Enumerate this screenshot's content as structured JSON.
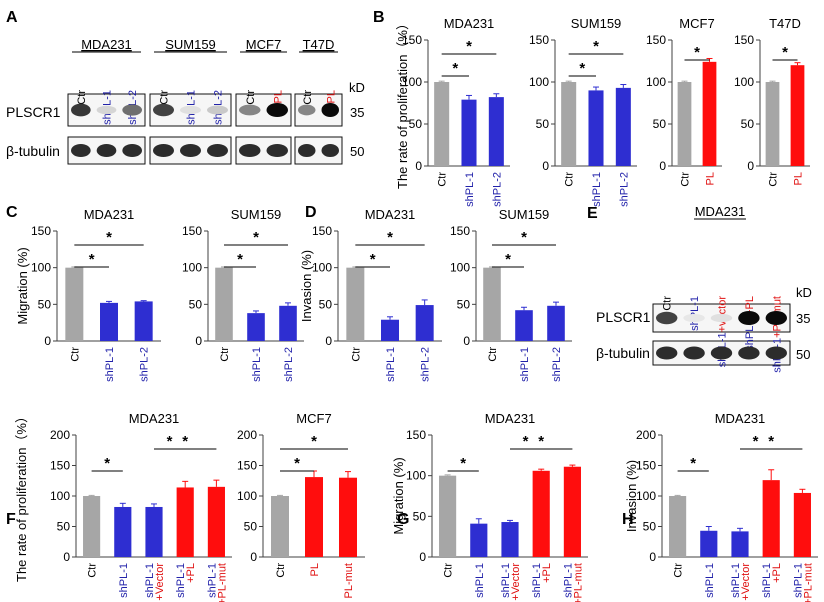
{
  "colors": {
    "ctr": "#a6a6a6",
    "kd": "#2e2ed1",
    "oe": "#ff0d0d",
    "axis": "#404040",
    "label_kd": "#2222aa",
    "label_oe": "#e01010",
    "text": "#000000"
  },
  "blots": {
    "A": {
      "letter": "A",
      "kd": "kD",
      "protein1": "PLSCR1",
      "protein2": "β-tubulin",
      "mw1": "35",
      "mw2": "50",
      "groups": [
        {
          "name": "MDA231",
          "lanes": [
            {
              "label": "Ctr",
              "kind": "ctr"
            },
            {
              "label": "shPL-1",
              "kind": "kd"
            },
            {
              "label": "shPL-2",
              "kind": "kd"
            }
          ]
        },
        {
          "name": "SUM159",
          "lanes": [
            {
              "label": "Ctr",
              "kind": "ctr"
            },
            {
              "label": "shPL-1",
              "kind": "kd"
            },
            {
              "label": "shPL-2",
              "kind": "kd"
            }
          ]
        },
        {
          "name": "MCF7",
          "lanes": [
            {
              "label": "Ctr",
              "kind": "ctr"
            },
            {
              "label": "PL",
              "kind": "oe"
            }
          ]
        },
        {
          "name": "T47D",
          "lanes": [
            {
              "label": "Ctr",
              "kind": "ctr"
            },
            {
              "label": "PL",
              "kind": "oe"
            }
          ]
        }
      ]
    },
    "E": {
      "letter": "E",
      "kd": "kD",
      "protein1": "PLSCR1",
      "protein2": "β-tubulin",
      "mw1": "35",
      "mw2": "50",
      "group": "MDA231",
      "lanes": [
        {
          "label": "Ctr",
          "kind": "ctr"
        },
        {
          "label": "shPL-1",
          "kind": "kd"
        },
        {
          "label": "shPL-1+vector",
          "kind": "kd_oe"
        },
        {
          "label": "shPL-1+PL",
          "kind": "kd_oe"
        },
        {
          "label": "shPL-1+PL-mut",
          "kind": "kd_oe"
        }
      ]
    }
  },
  "chart_data": [
    {
      "panel": "B",
      "type": "bar",
      "title": "MDA231",
      "ylabel": "The rate of proliferation（%）",
      "ylim": [
        0,
        150
      ],
      "ticks": [
        0,
        50,
        100,
        150
      ],
      "categories": [
        {
          "label": "Ctr",
          "kind": "ctr"
        },
        {
          "label": "shPL-1",
          "kind": "kd"
        },
        {
          "label": "shPL-2",
          "kind": "kd"
        }
      ],
      "values": [
        100,
        79,
        82
      ],
      "errors": [
        1,
        5,
        4
      ],
      "significance": [
        {
          "from": 0,
          "to": 1,
          "label": "*"
        },
        {
          "from": 0,
          "to": 2,
          "label": "*"
        }
      ]
    },
    {
      "panel": "",
      "type": "bar",
      "title": "SUM159",
      "ylabel": "",
      "ylim": [
        0,
        150
      ],
      "ticks": [
        0,
        50,
        100,
        150
      ],
      "categories": [
        {
          "label": "Ctr",
          "kind": "ctr"
        },
        {
          "label": "shPL-1",
          "kind": "kd"
        },
        {
          "label": "shPL-2",
          "kind": "kd"
        }
      ],
      "values": [
        100,
        90,
        93
      ],
      "errors": [
        1,
        4,
        4
      ],
      "significance": [
        {
          "from": 0,
          "to": 1,
          "label": "*"
        },
        {
          "from": 0,
          "to": 2,
          "label": "*"
        }
      ]
    },
    {
      "panel": "",
      "type": "bar",
      "title": "MCF7",
      "ylabel": "",
      "ylim": [
        0,
        150
      ],
      "ticks": [
        0,
        50,
        100,
        150
      ],
      "categories": [
        {
          "label": "Ctr",
          "kind": "ctr"
        },
        {
          "label": "PL",
          "kind": "oe"
        }
      ],
      "values": [
        100,
        124
      ],
      "errors": [
        1,
        4
      ],
      "significance": [
        {
          "from": 0,
          "to": 1,
          "label": "*"
        }
      ]
    },
    {
      "panel": "",
      "type": "bar",
      "title": "T47D",
      "ylabel": "",
      "ylim": [
        0,
        150
      ],
      "ticks": [
        0,
        50,
        100,
        150
      ],
      "categories": [
        {
          "label": "Ctr",
          "kind": "ctr"
        },
        {
          "label": "PL",
          "kind": "oe"
        }
      ],
      "values": [
        100,
        120
      ],
      "errors": [
        1,
        3
      ],
      "significance": [
        {
          "from": 0,
          "to": 1,
          "label": "*"
        }
      ]
    },
    {
      "panel": "C",
      "type": "bar",
      "title": "MDA231",
      "ylabel": "Migration (%)",
      "ylim": [
        0,
        150
      ],
      "ticks": [
        0,
        50,
        100,
        150
      ],
      "categories": [
        {
          "label": "Ctr",
          "kind": "ctr"
        },
        {
          "label": "shPL-1",
          "kind": "kd"
        },
        {
          "label": "shPL-2",
          "kind": "kd"
        }
      ],
      "values": [
        100,
        52,
        54
      ],
      "errors": [
        1,
        2,
        1
      ],
      "significance": [
        {
          "from": 0,
          "to": 1,
          "label": "*"
        },
        {
          "from": 0,
          "to": 2,
          "label": "*"
        }
      ]
    },
    {
      "panel": "",
      "type": "bar",
      "title": "SUM159",
      "ylabel": "",
      "ylim": [
        0,
        150
      ],
      "ticks": [
        0,
        50,
        100,
        150
      ],
      "categories": [
        {
          "label": "Ctr",
          "kind": "ctr"
        },
        {
          "label": "shPL-1",
          "kind": "kd"
        },
        {
          "label": "shPL-2",
          "kind": "kd"
        }
      ],
      "values": [
        100,
        38,
        48
      ],
      "errors": [
        1,
        3,
        4
      ],
      "significance": [
        {
          "from": 0,
          "to": 1,
          "label": "*"
        },
        {
          "from": 0,
          "to": 2,
          "label": "*"
        }
      ]
    },
    {
      "panel": "D",
      "type": "bar",
      "title": "MDA231",
      "ylabel": "Invasion (%)",
      "ylim": [
        0,
        150
      ],
      "ticks": [
        0,
        50,
        100,
        150
      ],
      "categories": [
        {
          "label": "Ctr",
          "kind": "ctr"
        },
        {
          "label": "shPL-1",
          "kind": "kd"
        },
        {
          "label": "shPL-2",
          "kind": "kd"
        }
      ],
      "values": [
        100,
        29,
        49
      ],
      "errors": [
        1,
        4,
        7
      ],
      "significance": [
        {
          "from": 0,
          "to": 1,
          "label": "*"
        },
        {
          "from": 0,
          "to": 2,
          "label": "*"
        }
      ]
    },
    {
      "panel": "",
      "type": "bar",
      "title": "SUM159",
      "ylabel": "",
      "ylim": [
        0,
        150
      ],
      "ticks": [
        0,
        50,
        100,
        150
      ],
      "categories": [
        {
          "label": "Ctr",
          "kind": "ctr"
        },
        {
          "label": "shPL-1",
          "kind": "kd"
        },
        {
          "label": "shPL-2",
          "kind": "kd"
        }
      ],
      "values": [
        100,
        42,
        48
      ],
      "errors": [
        1,
        4,
        5
      ],
      "significance": [
        {
          "from": 0,
          "to": 1,
          "label": "*"
        },
        {
          "from": 0,
          "to": 2,
          "label": "*"
        }
      ]
    },
    {
      "panel": "F",
      "type": "bar",
      "title": "MDA231",
      "ylabel": "The rate of proliferation（%）",
      "ylim": [
        0,
        200
      ],
      "ticks": [
        0,
        50,
        100,
        150,
        200
      ],
      "categories": [
        {
          "label": "Ctr",
          "kind": "ctr"
        },
        {
          "label": "shPL-1",
          "kind": "kd"
        },
        {
          "label": "shPL-1|+Vector",
          "kind": "kd_oe"
        },
        {
          "label": "shPL-1|+PL",
          "kind": "kd_oe"
        },
        {
          "label": "shPL-1|+PL-mut",
          "kind": "kd_oe"
        }
      ],
      "bar_kinds": [
        "ctr",
        "kd",
        "kd",
        "oe",
        "oe"
      ],
      "values": [
        100,
        82,
        82,
        114,
        115
      ],
      "errors": [
        1,
        6,
        5,
        10,
        11
      ],
      "significance": [
        {
          "from": 0,
          "to": 1,
          "label": "*"
        },
        {
          "from": 2,
          "to": 3,
          "label": "*"
        },
        {
          "from": 2,
          "to": 4,
          "label": "*"
        }
      ]
    },
    {
      "panel": "",
      "type": "bar",
      "title": "MCF7",
      "ylabel": "",
      "ylim": [
        0,
        200
      ],
      "ticks": [
        0,
        50,
        100,
        150,
        200
      ],
      "categories": [
        {
          "label": "Ctr",
          "kind": "ctr"
        },
        {
          "label": "PL",
          "kind": "oe"
        },
        {
          "label": "PL-mut",
          "kind": "oe"
        }
      ],
      "values": [
        100,
        131,
        130
      ],
      "errors": [
        1,
        10,
        10
      ],
      "significance": [
        {
          "from": 0,
          "to": 1,
          "label": "*"
        },
        {
          "from": 0,
          "to": 2,
          "label": "*"
        }
      ]
    },
    {
      "panel": "G",
      "type": "bar",
      "title": "MDA231",
      "ylabel": "Migration (%)",
      "ylim": [
        0,
        150
      ],
      "ticks": [
        0,
        50,
        100,
        150
      ],
      "categories": [
        {
          "label": "Ctr",
          "kind": "ctr"
        },
        {
          "label": "shPL-1",
          "kind": "kd"
        },
        {
          "label": "shPL-1|+Vector",
          "kind": "kd_oe"
        },
        {
          "label": "shPL-1|+PL",
          "kind": "kd_oe"
        },
        {
          "label": "shPL-1|+PL-mut",
          "kind": "kd_oe"
        }
      ],
      "bar_kinds": [
        "ctr",
        "kd",
        "kd",
        "oe",
        "oe"
      ],
      "values": [
        100,
        41,
        43,
        106,
        111
      ],
      "errors": [
        1,
        6,
        2,
        2,
        2
      ],
      "significance": [
        {
          "from": 0,
          "to": 1,
          "label": "*"
        },
        {
          "from": 2,
          "to": 3,
          "label": "*"
        },
        {
          "from": 2,
          "to": 4,
          "label": "*"
        }
      ]
    },
    {
      "panel": "H",
      "type": "bar",
      "title": "MDA231",
      "ylabel": "Invasion (%)",
      "ylim": [
        0,
        200
      ],
      "ticks": [
        0,
        50,
        100,
        150,
        200
      ],
      "categories": [
        {
          "label": "Ctr",
          "kind": "ctr"
        },
        {
          "label": "shPL-1",
          "kind": "kd"
        },
        {
          "label": "shPL-1|+Vector",
          "kind": "kd_oe"
        },
        {
          "label": "shPL-1|+PL",
          "kind": "kd_oe"
        },
        {
          "label": "shPL-1|+PL-mut",
          "kind": "kd_oe"
        }
      ],
      "bar_kinds": [
        "ctr",
        "kd",
        "kd",
        "oe",
        "oe"
      ],
      "values": [
        100,
        43,
        42,
        126,
        105
      ],
      "errors": [
        1,
        7,
        5,
        17,
        6
      ],
      "significance": [
        {
          "from": 0,
          "to": 1,
          "label": "*"
        },
        {
          "from": 2,
          "to": 3,
          "label": "*"
        },
        {
          "from": 2,
          "to": 4,
          "label": "*"
        }
      ]
    }
  ]
}
